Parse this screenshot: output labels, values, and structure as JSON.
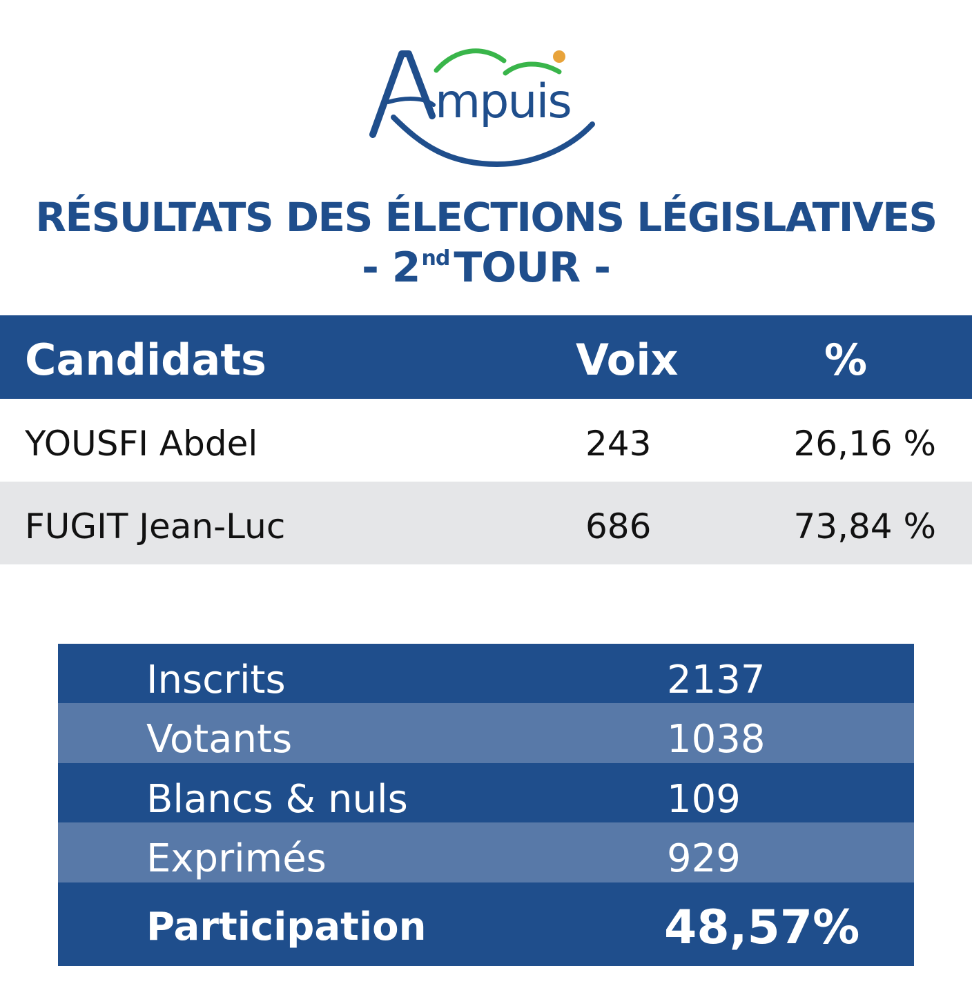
{
  "logo": {
    "text": "Ampuis",
    "colors": {
      "blue": "#1f4e8c",
      "green": "#39b54a",
      "orange": "#e8a33a"
    }
  },
  "title": {
    "line1": "RÉSULTATS DES ÉLECTIONS LÉGISLATIVES",
    "line2_prefix": "- 2",
    "line2_sup": "nd",
    "line2_suffix": "TOUR -"
  },
  "candidates_table": {
    "headers": {
      "candidate": "Candidats",
      "votes": "Voix",
      "percent": "%"
    },
    "rows": [
      {
        "name": "YOUSFI Abdel",
        "votes": "243",
        "percent": "26,16 %"
      },
      {
        "name": "FUGIT Jean-Luc",
        "votes": "686",
        "percent": "73,84 %"
      }
    ]
  },
  "summary": [
    {
      "label": "Inscrits",
      "value": "2137"
    },
    {
      "label": "Votants",
      "value": "1038"
    },
    {
      "label": "Blancs & nuls",
      "value": "109"
    },
    {
      "label": "Exprimés",
      "value": "929"
    },
    {
      "label": "Participation",
      "value": "48,57%"
    }
  ],
  "colors": {
    "primary": "#1f4e8c",
    "secondary": "#5879a8",
    "row_alt": "#e5e6e8"
  }
}
